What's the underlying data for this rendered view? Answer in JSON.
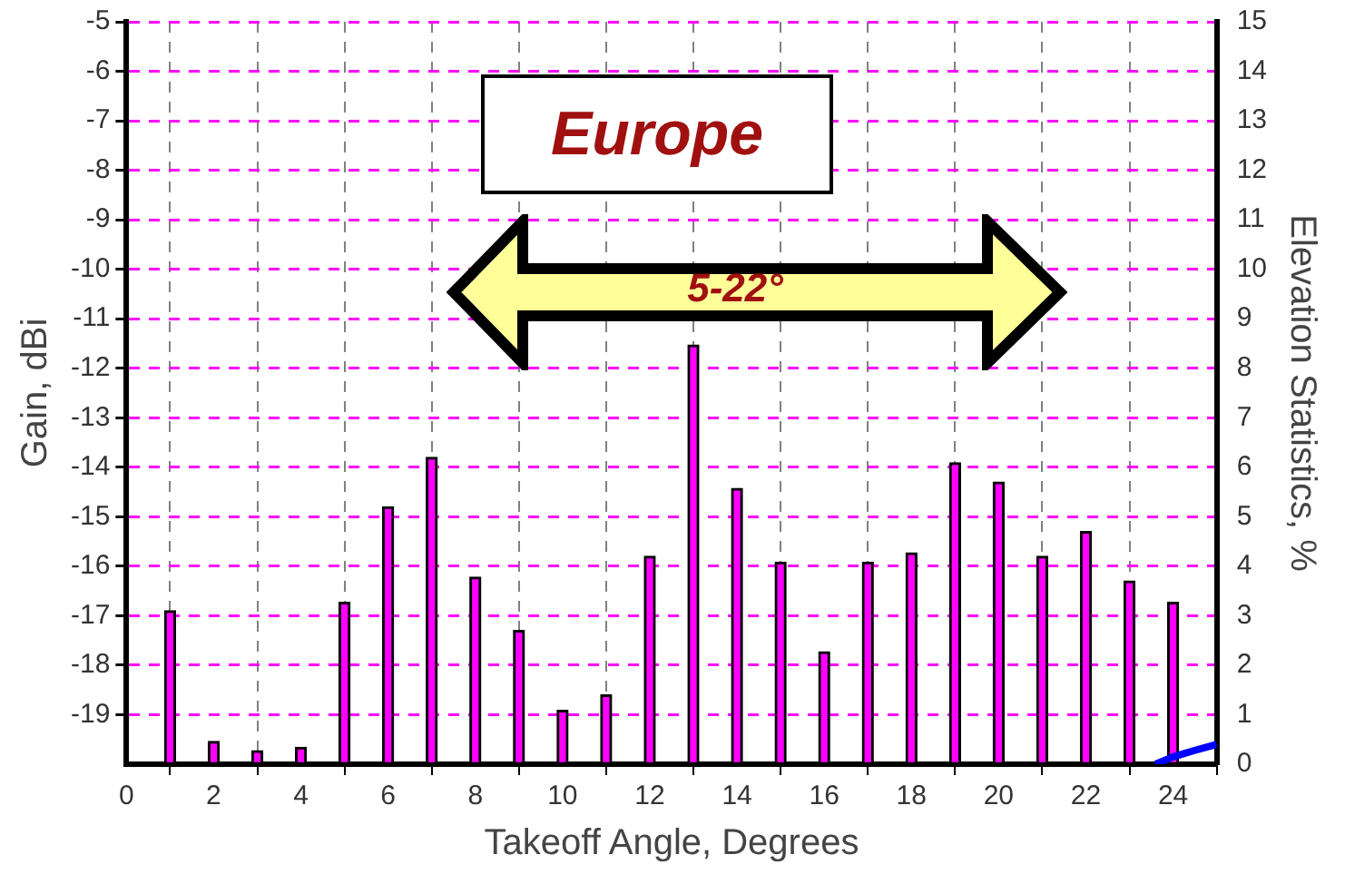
{
  "chart_data": {
    "type": "bar",
    "xlabel": "Takeoff Angle, Degrees",
    "ylabel": "Gain, dBi",
    "y2label": "Elevation Statistics, %",
    "annotations": [
      "Europe",
      "5-22°"
    ],
    "x": [
      1,
      2,
      3,
      4,
      5,
      6,
      7,
      8,
      9,
      10,
      11,
      12,
      13,
      14,
      15,
      16,
      17,
      18,
      19,
      20,
      21,
      22,
      23,
      24
    ],
    "series": [
      {
        "axis": "y2",
        "color": "#ff00ff",
        "values": [
          3.1,
          0.46,
          0.27,
          0.34,
          3.27,
          5.2,
          6.2,
          3.78,
          2.7,
          1.09,
          1.4,
          4.2,
          8.47,
          5.57,
          4.08,
          2.27,
          4.08,
          4.27,
          6.09,
          5.7,
          4.2,
          4.7,
          3.7,
          3.27
        ]
      },
      {
        "type": "line",
        "axis": "y",
        "color": "#0000ff",
        "x": [
          23.6,
          24,
          24.5,
          25
        ],
        "values": [
          -20,
          -19.85,
          -19.72,
          -19.6
        ]
      }
    ],
    "xlim": [
      0,
      25
    ],
    "xticks": [
      0,
      2,
      4,
      6,
      8,
      10,
      12,
      14,
      16,
      18,
      20,
      22,
      24
    ],
    "ylim": [
      -20,
      -5
    ],
    "yticks": [
      -19,
      -18,
      -17,
      -16,
      -15,
      -14,
      -13,
      -12,
      -11,
      -10,
      -9,
      -8,
      -7,
      -6,
      -5
    ],
    "y2lim": [
      0,
      15
    ],
    "y2ticks": [
      0,
      1,
      2,
      3,
      4,
      5,
      6,
      7,
      8,
      9,
      10,
      11,
      12,
      13,
      14,
      15
    ],
    "grid": true
  }
}
